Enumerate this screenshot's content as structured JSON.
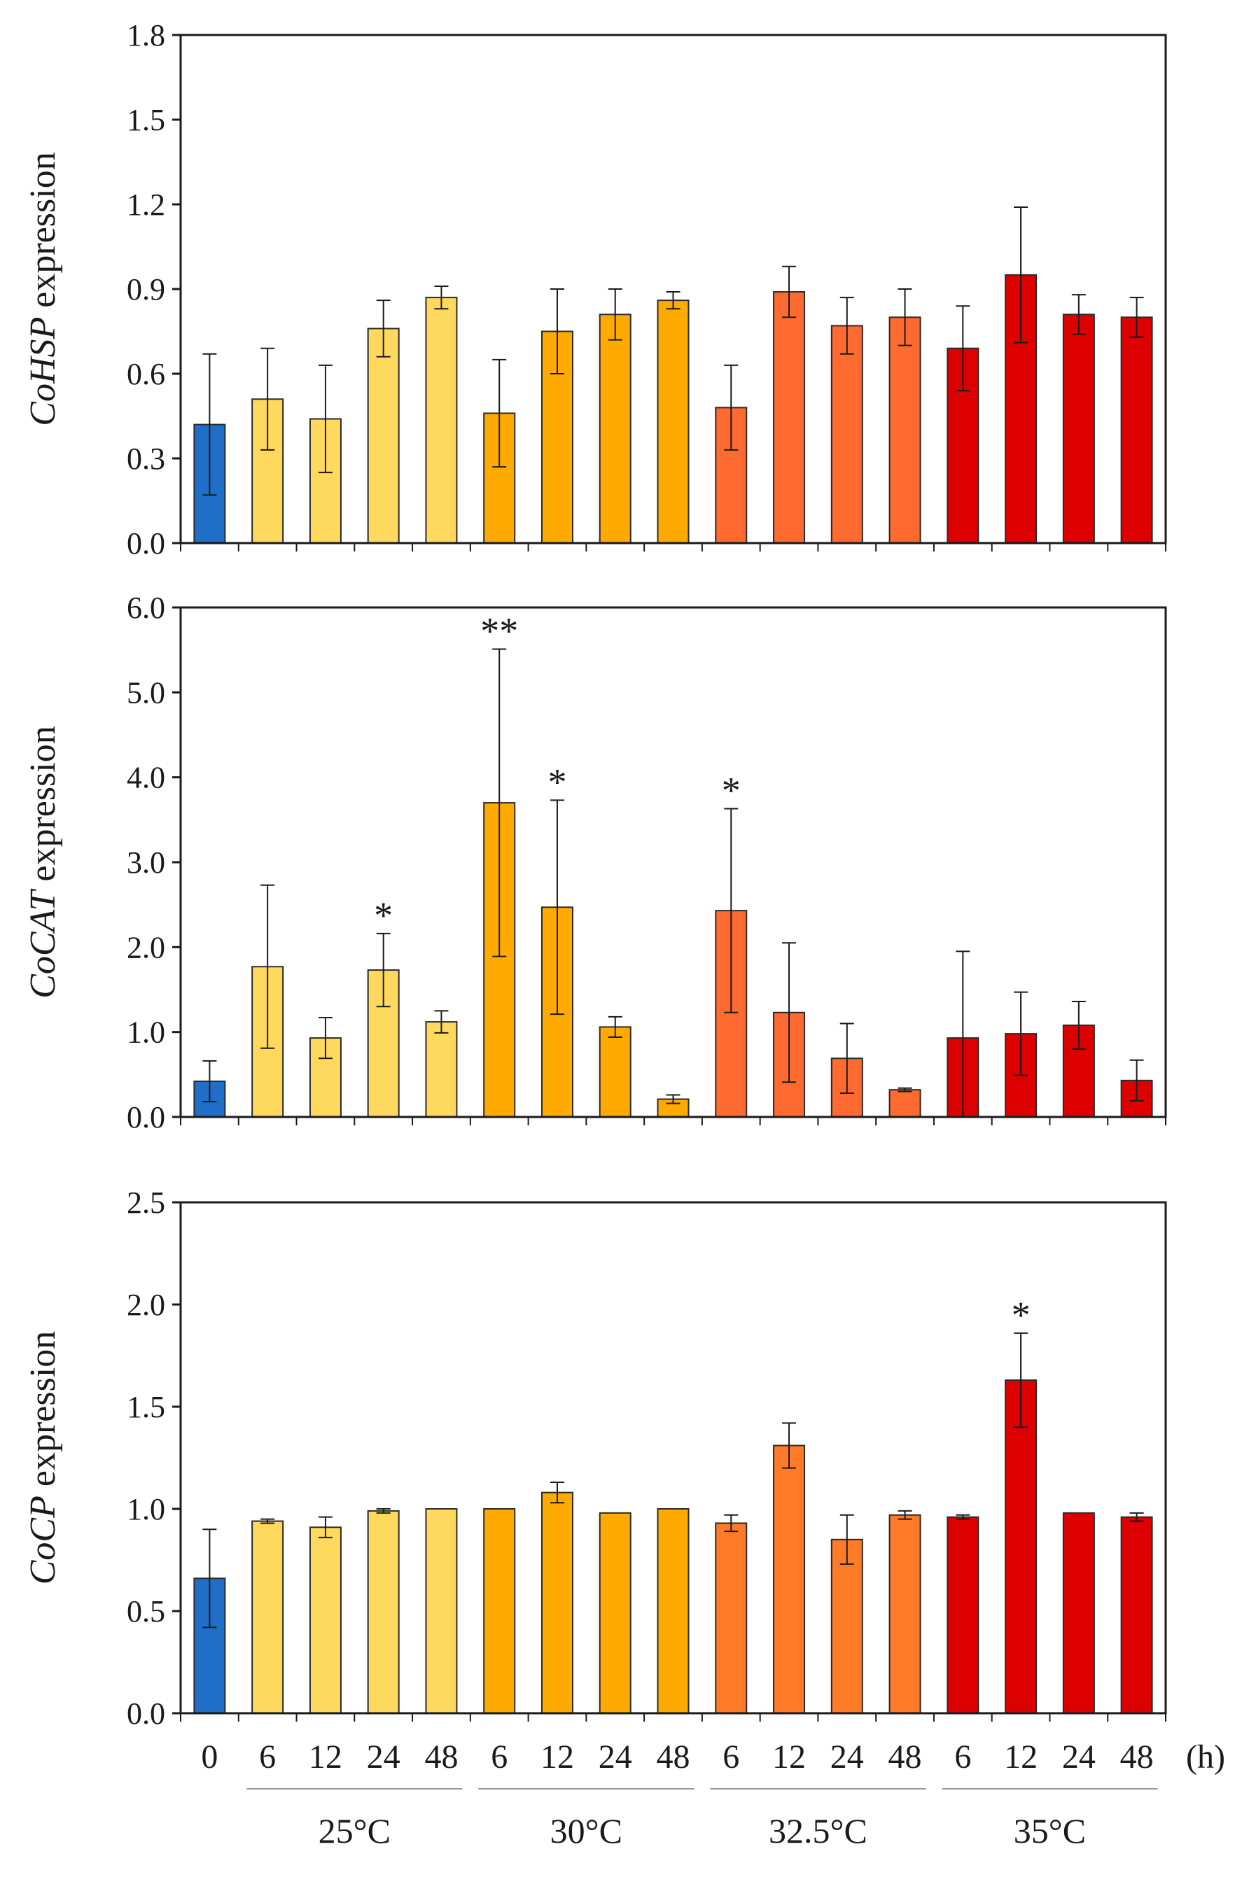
{
  "chart_data": [
    {
      "type": "bar",
      "title": "",
      "ylabel_gene": "CoHSP",
      "ylabel_suffix": " expression",
      "xlabel": "",
      "ylim": [
        0,
        1.8
      ],
      "yticks": [
        "0.0",
        "0.3",
        "0.6",
        "0.9",
        "1.2",
        "1.5",
        "1.8"
      ],
      "values": [
        0.42,
        0.51,
        0.44,
        0.76,
        0.87,
        0.46,
        0.75,
        0.81,
        0.86,
        0.48,
        0.89,
        0.77,
        0.8,
        0.69,
        0.95,
        0.81,
        0.8
      ],
      "errors": [
        0.25,
        0.18,
        0.19,
        0.1,
        0.04,
        0.19,
        0.15,
        0.09,
        0.03,
        0.15,
        0.09,
        0.1,
        0.1,
        0.15,
        0.24,
        0.07,
        0.07
      ],
      "significance": [
        "",
        "",
        "",
        "",
        "",
        "",
        "",
        "",
        "",
        "",
        "",
        "",
        "",
        "",
        "",
        "",
        ""
      ]
    },
    {
      "type": "bar",
      "title": "",
      "ylabel_gene": "CoCAT",
      "ylabel_suffix": " expression",
      "xlabel": "",
      "ylim": [
        0,
        6.0
      ],
      "yticks": [
        "0.0",
        "1.0",
        "2.0",
        "3.0",
        "4.0",
        "5.0",
        "6.0"
      ],
      "values": [
        0.42,
        1.77,
        0.93,
        1.73,
        1.12,
        3.7,
        2.47,
        1.06,
        0.21,
        2.43,
        1.23,
        0.69,
        0.32,
        0.93,
        0.98,
        1.08,
        0.43
      ],
      "errors": [
        0.24,
        0.96,
        0.24,
        0.43,
        0.13,
        1.81,
        1.26,
        0.12,
        0.05,
        1.2,
        0.82,
        0.41,
        0.02,
        1.02,
        0.49,
        0.28,
        0.24
      ],
      "significance": [
        "",
        "",
        "",
        "*",
        "",
        "**",
        "*",
        "",
        "",
        "*",
        "",
        "",
        "",
        "",
        "",
        "",
        ""
      ]
    },
    {
      "type": "bar",
      "title": "",
      "ylabel_gene": "CoCP",
      "ylabel_suffix": " expression",
      "xlabel": "(h)",
      "ylim": [
        0,
        2.5
      ],
      "yticks": [
        "0.0",
        "0.5",
        "1.0",
        "1.5",
        "2.0",
        "2.5"
      ],
      "values": [
        0.66,
        0.94,
        0.91,
        0.99,
        1.0,
        1.0,
        1.08,
        0.98,
        1.0,
        0.93,
        1.31,
        0.85,
        0.97,
        0.96,
        1.63,
        0.98,
        0.96
      ],
      "errors": [
        0.24,
        0.01,
        0.05,
        0.01,
        0.0,
        0.0,
        0.05,
        0.0,
        0.0,
        0.04,
        0.11,
        0.12,
        0.02,
        0.01,
        0.23,
        0.0,
        0.02
      ],
      "significance": [
        "",
        "",
        "",
        "",
        "",
        "",
        "",
        "",
        "",
        "",
        "",
        "",
        "",
        "",
        "*",
        "",
        ""
      ]
    }
  ],
  "x_axis": {
    "categories": [
      "0",
      "6",
      "12",
      "24",
      "48",
      "6",
      "12",
      "24",
      "48",
      "6",
      "12",
      "24",
      "48",
      "6",
      "12",
      "24",
      "48"
    ],
    "unit_label": "(h)",
    "groups": [
      "25°C",
      "30°C",
      "32.5°C",
      "35°C"
    ]
  },
  "colors": {
    "control": "#1f6fc9",
    "t25": "#ffd95e",
    "t30": "#ffaa00",
    "t32_5": "#ff6a30",
    "t35": "#dd0000",
    "t32_5_cp": "#ff7b28",
    "t35_cp": "#dd0000",
    "bar_edge": "#2a2a2a",
    "axis": "#1a1a1a",
    "group_line": "#999999"
  },
  "bar_color_keys": [
    [
      "control",
      "t25",
      "t25",
      "t25",
      "t25",
      "t30",
      "t30",
      "t30",
      "t30",
      "t32_5",
      "t32_5",
      "t32_5",
      "t32_5",
      "t35",
      "t35",
      "t35",
      "t35"
    ],
    [
      "control",
      "t25",
      "t25",
      "t25",
      "t25",
      "t30",
      "t30",
      "t30",
      "t30",
      "t32_5",
      "t32_5",
      "t32_5",
      "t32_5",
      "t35",
      "t35",
      "t35",
      "t35"
    ],
    [
      "control",
      "t25",
      "t25",
      "t25",
      "t25",
      "t30",
      "t30",
      "t30",
      "t30",
      "t32_5_cp",
      "t32_5_cp",
      "t32_5_cp",
      "t32_5_cp",
      "t35_cp",
      "t35_cp",
      "t35_cp",
      "t35_cp"
    ]
  ]
}
